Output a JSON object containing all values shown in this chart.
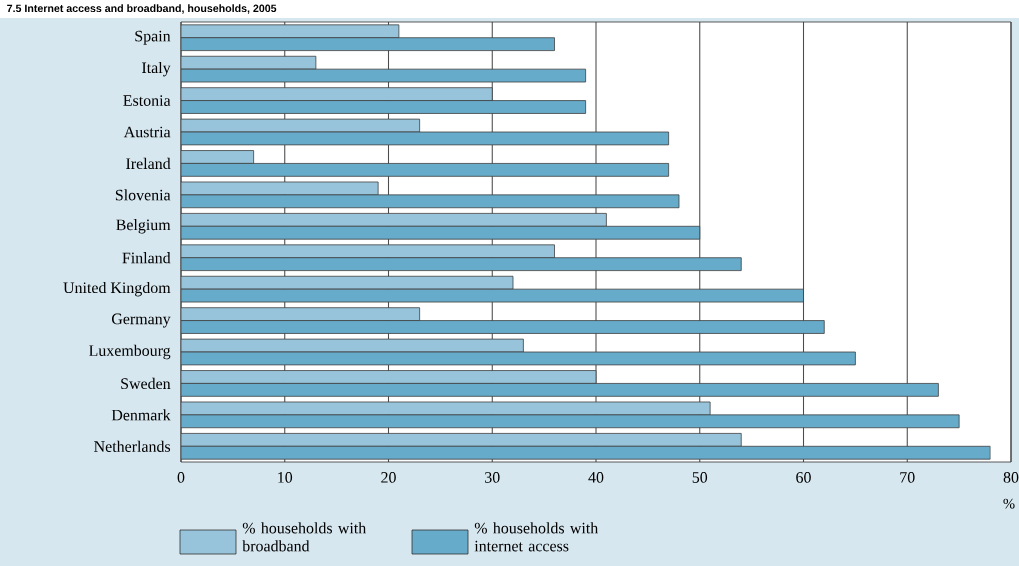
{
  "chart_data": {
    "type": "bar",
    "orientation": "horizontal",
    "title": "7.5  Internet access and broadband, households, 2005",
    "categories": [
      "Spain",
      "Italy",
      "Estonia",
      "Austria",
      "Ireland",
      "Slovenia",
      "Belgium",
      "Finland",
      "United Kingdom",
      "Germany",
      "Luxembourg",
      "Sweden",
      "Denmark",
      "Netherlands"
    ],
    "series": [
      {
        "name": "% households with broadband",
        "color": "#97c4da",
        "values": [
          21,
          13,
          30,
          23,
          7,
          19,
          41,
          36,
          32,
          23,
          33,
          40,
          51,
          54
        ]
      },
      {
        "name": "% households with internet access",
        "color": "#66abc9",
        "values": [
          36,
          39,
          39,
          47,
          47,
          48,
          50,
          54,
          60,
          62,
          65,
          73,
          75,
          78
        ]
      }
    ],
    "xlabel": "%",
    "xlim": [
      0,
      80
    ],
    "xticks": [
      0,
      10,
      20,
      30,
      40,
      50,
      60,
      70,
      80
    ],
    "grid": "x",
    "legend": "bottom"
  }
}
